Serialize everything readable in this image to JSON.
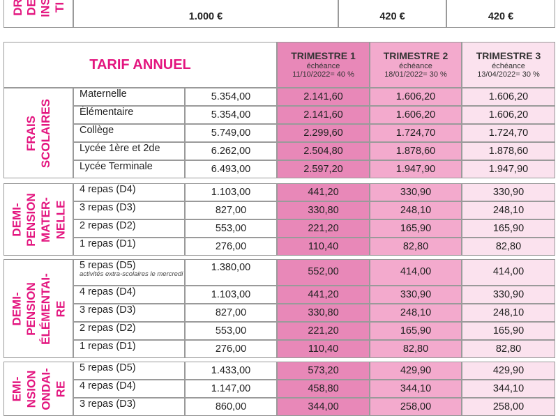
{
  "top_row": {
    "label_lines": [
      "DR",
      "DE",
      "INS",
      "TI"
    ],
    "values": [
      "1.000 €",
      "420 €",
      "420 €"
    ]
  },
  "header": {
    "title": "TARIF ANNUEL",
    "terms": [
      {
        "name": "TRIMESTRE 1",
        "due": "échéance",
        "date": "11/10/2022= 40 %"
      },
      {
        "name": "TRIMESTRE 2",
        "due": "échéance",
        "date": "18/01/2022= 30 %"
      },
      {
        "name": "TRIMESTRE 3",
        "due": "échéance",
        "date": "13/04/2022= 30 %"
      }
    ]
  },
  "sections": [
    {
      "label_lines": [
        "FRAIS",
        "SCOLAIRES"
      ],
      "rows": [
        {
          "cells": [
            "Maternelle",
            "5.354,00",
            "2.141,60",
            "1.606,20",
            "1.606,20"
          ]
        },
        {
          "cells": [
            "Élémentaire",
            "5.354,00",
            "2.141,60",
            "1.606,20",
            "1.606,20"
          ]
        },
        {
          "cells": [
            "Collège",
            "5.749,00",
            "2.299,60",
            "1.724,70",
            "1.724,70"
          ]
        },
        {
          "cells": [
            "Lycée 1ère et 2de",
            "6.262,00",
            "2.504,80",
            "1.878,60",
            "1.878,60"
          ]
        },
        {
          "cells": [
            "Lycée Terminale",
            "6.493,00",
            "2.597,20",
            "1.947,90",
            "1.947,90"
          ]
        }
      ]
    },
    {
      "label_lines": [
        "DEMI-",
        "PENSION",
        "MATER-",
        "NELLE"
      ],
      "rows": [
        {
          "cells": [
            "4 repas (D4)",
            "1.103,00",
            "441,20",
            "330,90",
            "330,90"
          ]
        },
        {
          "cells": [
            "3 repas (D3)",
            "827,00",
            "330,80",
            "248,10",
            "248,10"
          ]
        },
        {
          "cells": [
            "2 repas (D2)",
            "553,00",
            "221,20",
            "165,90",
            "165,90"
          ]
        },
        {
          "cells": [
            "1 repas (D1)",
            "276,00",
            "110,40",
            "82,80",
            "82,80"
          ]
        }
      ]
    },
    {
      "label_lines": [
        "DEMI-",
        "PENSION",
        "ÉLÉMENTAI-",
        "RE"
      ],
      "rows": [
        {
          "cells": [
            "5 repas (D5)",
            "1.380,00",
            "552,00",
            "414,00",
            "414,00"
          ],
          "note": "activités extra-scolaires le mercredi"
        },
        {
          "cells": [
            "4 repas (D4)",
            "1.103,00",
            "441,20",
            "330,90",
            "330,90"
          ]
        },
        {
          "cells": [
            "3 repas (D3)",
            "827,00",
            "330,80",
            "248,10",
            "248,10"
          ]
        },
        {
          "cells": [
            "2 repas (D2)",
            "553,00",
            "221,20",
            "165,90",
            "165,90"
          ]
        },
        {
          "cells": [
            "1 repas (D1)",
            "276,00",
            "110,40",
            "82,80",
            "82,80"
          ]
        }
      ]
    },
    {
      "label_lines": [
        "EMI-",
        "NSION",
        "ONDAI-",
        "RE"
      ],
      "rows": [
        {
          "cells": [
            "5 repas (D5)",
            "1.433,00",
            "573,20",
            "429,90",
            "429,90"
          ]
        },
        {
          "cells": [
            "4 repas (D4)",
            "1.147,00",
            "458,80",
            "344,10",
            "344,10"
          ]
        },
        {
          "cells": [
            "3 repas (D3)",
            "860,00",
            "344,00",
            "258,00",
            "258,00"
          ]
        }
      ]
    }
  ]
}
